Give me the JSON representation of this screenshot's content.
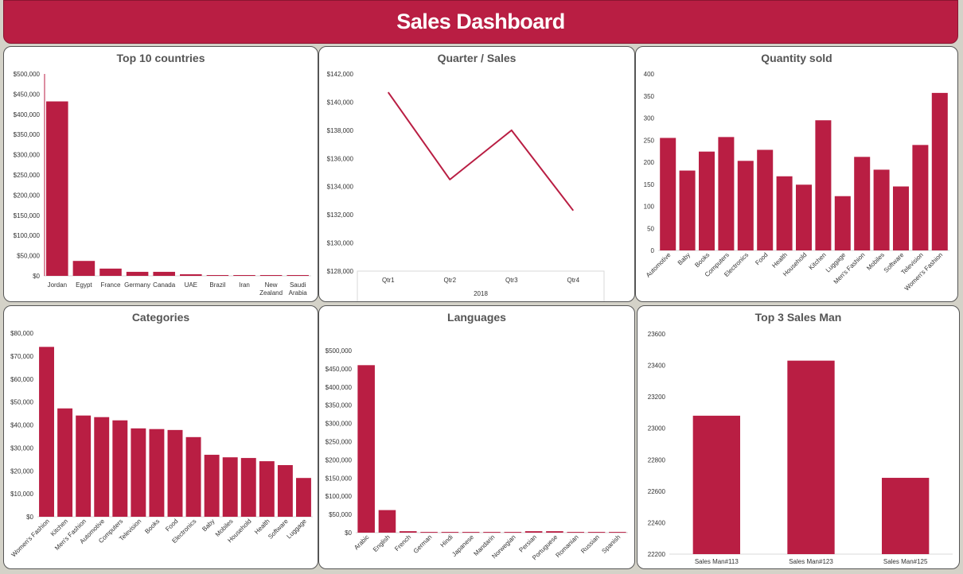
{
  "header": {
    "title": "Sales Dashboard"
  },
  "colors": {
    "accent": "#b91e43",
    "axis": "#cccccc",
    "text": "#333333",
    "title": "#555555"
  },
  "chart_data": [
    {
      "id": "countries",
      "type": "bar",
      "title": "Top 10 countries",
      "categories": [
        "Jordan",
        "Egypt",
        "France",
        "Germany",
        "Canada",
        "UAE",
        "Brazil",
        "Iran",
        "New Zealand",
        "Saudi Arabia"
      ],
      "values": [
        432000,
        37000,
        18000,
        10000,
        10000,
        4000,
        2000,
        2000,
        2000,
        2000
      ],
      "ylim": [
        0,
        500000
      ],
      "yticks": [
        0,
        50000,
        100000,
        150000,
        200000,
        250000,
        300000,
        350000,
        400000,
        450000,
        500000
      ],
      "ytick_labels": [
        "$0",
        "$50,000",
        "$100,000",
        "$150,000",
        "$200,000",
        "$250,000",
        "$300,000",
        "$350,000",
        "$400,000",
        "$450,000",
        "$500,000"
      ],
      "xlabel": "",
      "ylabel": "",
      "grid": false,
      "rotate_labels": false
    },
    {
      "id": "quarters",
      "type": "line",
      "title": "Quarter / Sales",
      "categories": [
        "Qtr1",
        "Qtr2",
        "Qtr3",
        "Qtr4"
      ],
      "group_label": "2018",
      "values": [
        140700,
        134500,
        138000,
        132300
      ],
      "ylim": [
        128000,
        142000
      ],
      "yticks": [
        128000,
        130000,
        132000,
        134000,
        136000,
        138000,
        140000,
        142000
      ],
      "ytick_labels": [
        "$128,000",
        "$130,000",
        "$132,000",
        "$134,000",
        "$136,000",
        "$138,000",
        "$140,000",
        "$142,000"
      ],
      "xlabel": "",
      "ylabel": "",
      "grid": false
    },
    {
      "id": "quantity",
      "type": "bar",
      "title": "Quantity sold",
      "categories": [
        "Automotive",
        "Baby",
        "Books",
        "Computers",
        "Electronics",
        "Food",
        "Health",
        "Household",
        "Kitchen",
        "Luggage",
        "Men's Fashion",
        "Mobiles",
        "Software",
        "Television",
        "Women's Fashion"
      ],
      "values": [
        255,
        181,
        224,
        257,
        203,
        228,
        168,
        149,
        295,
        123,
        212,
        183,
        145,
        239,
        357
      ],
      "ylim": [
        0,
        400
      ],
      "yticks": [
        0,
        50,
        100,
        150,
        200,
        250,
        300,
        350,
        400
      ],
      "ytick_labels": [
        "0",
        "50",
        "100",
        "150",
        "200",
        "250",
        "300",
        "350",
        "400"
      ],
      "xlabel": "",
      "ylabel": "",
      "grid": false,
      "rotate_labels": true
    },
    {
      "id": "categories",
      "type": "bar",
      "title": "Categories",
      "categories": [
        "Women's Fashion",
        "Kitchen",
        "Men's Fashion",
        "Automotive",
        "Computers",
        "Television",
        "Books",
        "Food",
        "Electronics",
        "Baby",
        "Mobiles",
        "Household",
        "Health",
        "Software",
        "Luggage"
      ],
      "values": [
        74000,
        47200,
        44100,
        43400,
        42000,
        38500,
        38200,
        37800,
        34700,
        27000,
        25900,
        25600,
        24200,
        22500,
        16900
      ],
      "ylim": [
        0,
        80000
      ],
      "yticks": [
        0,
        10000,
        20000,
        30000,
        40000,
        50000,
        60000,
        70000,
        80000
      ],
      "ytick_labels": [
        "$0",
        "$10,000",
        "$20,000",
        "$30,000",
        "$40,000",
        "$50,000",
        "$60,000",
        "$70,000",
        "$80,000"
      ],
      "xlabel": "",
      "ylabel": "",
      "grid": false,
      "rotate_labels": true
    },
    {
      "id": "languages",
      "type": "bar",
      "title": "Languages",
      "categories": [
        "Arabic",
        "English",
        "French",
        "German",
        "Hindi",
        "Japanese",
        "Mandarin",
        "Norwegian",
        "Persian",
        "Portuguese",
        "Romanian",
        "Russian",
        "Spanish"
      ],
      "values": [
        460000,
        62000,
        4000,
        2000,
        2000,
        2000,
        2000,
        2000,
        4000,
        4000,
        2000,
        2000,
        2000
      ],
      "ylim": [
        0,
        500000
      ],
      "yticks": [
        0,
        50000,
        100000,
        150000,
        200000,
        250000,
        300000,
        350000,
        400000,
        450000,
        500000
      ],
      "ytick_labels": [
        "$0",
        "$50,000",
        "$100,000",
        "$150,000",
        "$200,000",
        "$250,000",
        "$300,000",
        "$350,000",
        "$400,000",
        "$450,000",
        "$500,000"
      ],
      "xlabel": "",
      "ylabel": "",
      "grid": false,
      "rotate_labels": true
    },
    {
      "id": "salesmen",
      "type": "bar",
      "title": "Top 3 Sales Man",
      "categories": [
        "Sales Man#113",
        "Sales Man#123",
        "Sales Man#125"
      ],
      "values": [
        23080,
        23430,
        22685
      ],
      "ylim": [
        22200,
        23600
      ],
      "yticks": [
        22200,
        22400,
        22600,
        22800,
        23000,
        23200,
        23400,
        23600
      ],
      "ytick_labels": [
        "22200",
        "22400",
        "22600",
        "22800",
        "23000",
        "23200",
        "23400",
        "23600"
      ],
      "xlabel": "",
      "ylabel": "",
      "grid": false,
      "rotate_labels": false
    }
  ]
}
